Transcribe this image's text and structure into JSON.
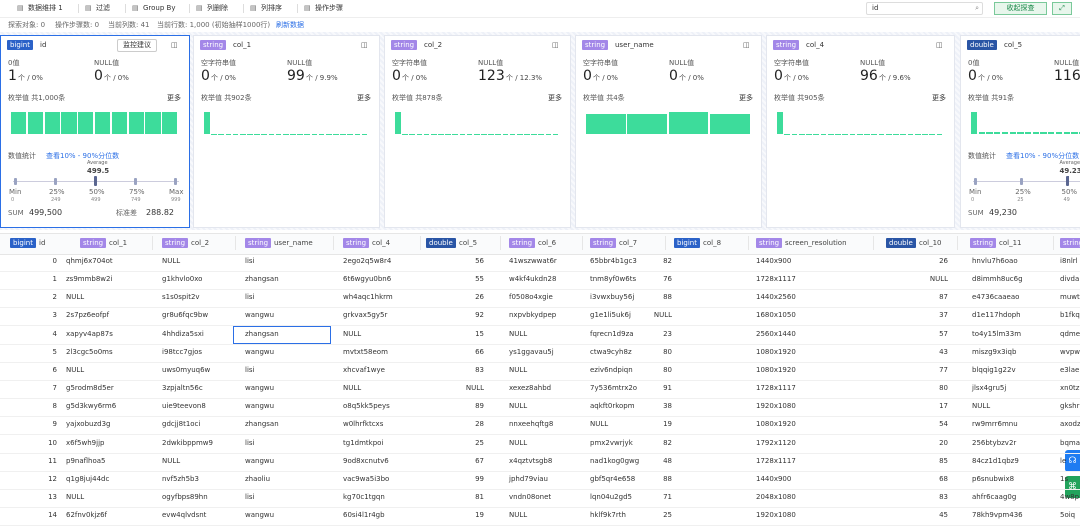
{
  "toolbar": {
    "items": [
      "数据维排 1",
      "过滤",
      "Group By",
      "列删除",
      "列排序",
      "操作步骤"
    ],
    "search": "id",
    "collapse": "收起探查"
  },
  "status": {
    "items": [
      "探索对象: 0",
      "操作步骤数: 0",
      "当前列数: 41",
      "当前行数: 1,000 (初始抽样1000行)"
    ],
    "refresh": "刷新数据"
  },
  "cards": [
    {
      "type": "bigint",
      "name": "id",
      "button": "监控建议",
      "stats": [
        {
          "label": "0值",
          "count": "1",
          "unit": "个 / 0%"
        },
        {
          "label": "NULL值",
          "count": "0",
          "unit": "个 / 0%"
        }
      ],
      "enum_label": "枚举值 共1,000条",
      "more": "更多",
      "bars": [
        100,
        100,
        100,
        100,
        100,
        100,
        100,
        100,
        100,
        100
      ],
      "numeric": {
        "label": "数值统计",
        "link": "查看10% - 90%分位数",
        "average_label": "Average",
        "average": "499.5",
        "quantiles": [
          {
            "label": "Min",
            "value": "0"
          },
          {
            "label": "25%",
            "value": "249"
          },
          {
            "label": "50%",
            "value": "499"
          },
          {
            "label": "75%",
            "value": "749"
          },
          {
            "label": "Max",
            "value": "999"
          }
        ],
        "sum_label": "SUM",
        "sum": "499,500",
        "std_label": "标准差",
        "std": "288.82"
      }
    },
    {
      "type": "string",
      "name": "col_1",
      "stats": [
        {
          "label": "空字符串值",
          "count": "0",
          "unit": "个 / 0%"
        },
        {
          "label": "NULL值",
          "count": "99",
          "unit": "个 / 9.9%"
        }
      ],
      "enum_label": "枚举值 共902条",
      "more": "更多",
      "bars": [
        99,
        1,
        1,
        1,
        1,
        1,
        1,
        1,
        1,
        1,
        1,
        1,
        1,
        1,
        1,
        1,
        1,
        1,
        1,
        1,
        1,
        1,
        1
      ]
    },
    {
      "type": "string",
      "name": "col_2",
      "stats": [
        {
          "label": "空字符串值",
          "count": "0",
          "unit": "个 / 0%"
        },
        {
          "label": "NULL值",
          "count": "123",
          "unit": "个 / 12.3%"
        }
      ],
      "enum_label": "枚举值 共878条",
      "more": "更多",
      "bars": [
        123,
        1,
        1,
        1,
        1,
        1,
        1,
        1,
        1,
        1,
        1,
        1,
        1,
        1,
        1,
        1,
        1,
        1,
        1,
        1,
        1,
        1,
        1
      ]
    },
    {
      "type": "string",
      "name": "user_name",
      "stats": [
        {
          "label": "空字符串值",
          "count": "0",
          "unit": "个 / 0%"
        },
        {
          "label": "NULL值",
          "count": "0",
          "unit": "个 / 0%"
        }
      ],
      "enum_label": "枚举值 共4条",
      "more": "更多",
      "bars": [
        240,
        245,
        270,
        245
      ]
    },
    {
      "type": "string",
      "name": "col_4",
      "stats": [
        {
          "label": "空字符串值",
          "count": "0",
          "unit": "个 / 0%"
        },
        {
          "label": "NULL值",
          "count": "96",
          "unit": "个 / 9.6%"
        }
      ],
      "enum_label": "枚举值 共905条",
      "more": "更多",
      "bars": [
        96,
        1,
        1,
        1,
        1,
        1,
        1,
        1,
        1,
        1,
        1,
        1,
        1,
        1,
        1,
        1,
        1,
        1,
        1,
        1,
        1,
        1,
        1
      ]
    },
    {
      "type": "double",
      "name": "col_5",
      "stats": [
        {
          "label": "0值",
          "count": "0",
          "unit": "个 / 0%"
        },
        {
          "label": "NULL值",
          "count": "116"
        }
      ],
      "enum_label": "枚举值 共91条",
      "bars": [
        116,
        12,
        10,
        11,
        9,
        10,
        11,
        12,
        10,
        9,
        11,
        10,
        12,
        10,
        9,
        11,
        10,
        12,
        10,
        11,
        9,
        10,
        11,
        12,
        10
      ],
      "numeric": {
        "label": "数值统计",
        "link": "查看10% - 90%分位数",
        "average_label": "Average",
        "average": "49.23",
        "quantiles": [
          {
            "label": "Min",
            "value": "0"
          },
          {
            "label": "25%",
            "value": "25"
          },
          {
            "label": "50%",
            "value": "49"
          }
        ],
        "sum_label": "SUM",
        "sum": "49,230",
        "std_label": "标准差"
      }
    }
  ],
  "table": {
    "columns": [
      {
        "type": "bigint",
        "name": "id"
      },
      {
        "type": "string",
        "name": "col_1"
      },
      {
        "type": "string",
        "name": "col_2"
      },
      {
        "type": "string",
        "name": "user_name"
      },
      {
        "type": "string",
        "name": "col_4"
      },
      {
        "type": "double",
        "name": "col_5"
      },
      {
        "type": "string",
        "name": "col_6"
      },
      {
        "type": "string",
        "name": "col_7"
      },
      {
        "type": "bigint",
        "name": "col_8"
      },
      {
        "type": "string",
        "name": "screen_resolution"
      },
      {
        "type": "double",
        "name": "col_10"
      },
      {
        "type": "string",
        "name": "col_11"
      },
      {
        "type": "string"
      }
    ],
    "rows": [
      [
        0,
        "qhmj6x704ot",
        "NULL",
        "lisi",
        "2ego2q5w8r4",
        56,
        "41wszwwat6r",
        "65bbr4b1gc3",
        82,
        "1440x900",
        26,
        "hnvlu7h6oao",
        "i8nlrl"
      ],
      [
        1,
        "zs9mmb8w2i",
        "g1khvlo0xo",
        "zhangsan",
        "6t6wgyu0bn6",
        55,
        "w4kf4ukdn28",
        "tnm8yf0w6ts",
        76,
        "1728x1117",
        "NULL",
        "d8immh8uc6g",
        "divda"
      ],
      [
        2,
        "NULL",
        "s1s0spit2v",
        "lisi",
        "wh4aqc1hkrm",
        26,
        "f0508o4xgie",
        "i3vwxbuy56j",
        88,
        "1440x2560",
        87,
        "e4736caaeao",
        "muwt"
      ],
      [
        3,
        "2s7pz6eofpf",
        "gr8u6fqc9bw",
        "wangwu",
        "grkvax5gy5r",
        92,
        "nxpvbkydpep",
        "g1e1li5uk6j",
        "NULL",
        "1680x1050",
        37,
        "d1e117hdoph",
        "b1fkq"
      ],
      [
        4,
        "xapyv4ap87s",
        "4hhdiza5sxi",
        "zhangsan",
        "NULL",
        15,
        "NULL",
        "fqrecn1d9za",
        23,
        "2560x1440",
        57,
        "to4y15lm33m",
        "qdme"
      ],
      [
        5,
        "2l3cgc5o0ms",
        "i98tcc7gjos",
        "wangwu",
        "mvtxt58eom",
        66,
        "ys1ggavau5j",
        "ctwa9cyh8z",
        80,
        "1080x1920",
        43,
        "miszg9x3iqb",
        "wvpw"
      ],
      [
        6,
        "NULL",
        "uws0myuq6w",
        "lisi",
        "xhcvaf1wye",
        83,
        "NULL",
        "eziv6ndpiqn",
        80,
        "1080x1920",
        77,
        "blqqig1g22v",
        "e3lae"
      ],
      [
        7,
        "g5rodm8d5er",
        "3zpjaltn56c",
        "wangwu",
        "NULL",
        "NULL",
        "xexez8ahbd",
        "7y536mtrx2o",
        91,
        "1728x1117",
        80,
        "jlsx4gru5j",
        "xn0tz"
      ],
      [
        8,
        "g5d3kwy6rm6",
        "uie9teevon8",
        "wangwu",
        "o8q5kk5peys",
        89,
        "NULL",
        "aqkft0rkopm",
        38,
        "1920x1080",
        17,
        "NULL",
        "gkshr"
      ],
      [
        9,
        "yajxobuzd3g",
        "gdcjj8t1oci",
        "zhangsan",
        "w0lhrfktcxs",
        28,
        "nnxeehqftg8",
        "NULL",
        19,
        "1080x1920",
        54,
        "rw9mrr6mnu",
        "axodz"
      ],
      [
        10,
        "x6f5wh9jjp",
        "2dwkibppmw9",
        "lisi",
        "tg1dmtkpoi",
        25,
        "NULL",
        "pmx2vwrjyk",
        82,
        "1792x1120",
        20,
        "256btybzv2r",
        "bqma"
      ],
      [
        11,
        "p9naflhoa5",
        "NULL",
        "wangwu",
        "9od8xcnutv6",
        67,
        "x4qztvtsgb8",
        "nad1kog0gwg",
        48,
        "1728x1117",
        85,
        "84cz1d1qbz9",
        "le"
      ],
      [
        12,
        "q1g8juj44dc",
        "nvf5zh5b3",
        "zhaoliu",
        "vac9wa5i3bo",
        99,
        "jphd79viau",
        "gbf5qr4e658",
        88,
        "1440x900",
        68,
        "p6snubwix8",
        "1s"
      ],
      [
        13,
        "NULL",
        "ogyfbps89hn",
        "lisi",
        "kg70c1tgqn",
        81,
        "vndn08onet",
        "lqn04u2gd5",
        71,
        "2048x1080",
        83,
        "ahfr6caag0g",
        "4w8p"
      ],
      [
        14,
        "62fnv0kjz6f",
        "evw4qlvdsnt",
        "wangwu",
        "60si4l1r4gb",
        19,
        "NULL",
        "hklf9k7rth",
        25,
        "1920x1080",
        45,
        "78kh9vpm436",
        "5oiq"
      ]
    ]
  }
}
